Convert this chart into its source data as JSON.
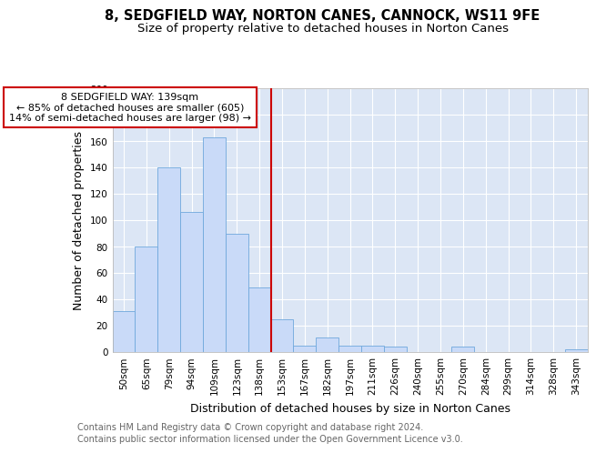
{
  "title": "8, SEDGFIELD WAY, NORTON CANES, CANNOCK, WS11 9FE",
  "subtitle": "Size of property relative to detached houses in Norton Canes",
  "xlabel": "Distribution of detached houses by size in Norton Canes",
  "ylabel": "Number of detached properties",
  "footnote1": "Contains HM Land Registry data © Crown copyright and database right 2024.",
  "footnote2": "Contains public sector information licensed under the Open Government Licence v3.0.",
  "categories": [
    "50sqm",
    "65sqm",
    "79sqm",
    "94sqm",
    "109sqm",
    "123sqm",
    "138sqm",
    "153sqm",
    "167sqm",
    "182sqm",
    "197sqm",
    "211sqm",
    "226sqm",
    "240sqm",
    "255sqm",
    "270sqm",
    "284sqm",
    "299sqm",
    "314sqm",
    "328sqm",
    "343sqm"
  ],
  "values": [
    31,
    80,
    140,
    106,
    163,
    90,
    49,
    25,
    5,
    11,
    5,
    5,
    4,
    0,
    0,
    4,
    0,
    0,
    0,
    0,
    2
  ],
  "bar_color": "#c9daf8",
  "bar_edge_color": "#6fa8dc",
  "vline_x_index": 6,
  "vline_color": "#cc0000",
  "annotation_text": "8 SEDGFIELD WAY: 139sqm\n← 85% of detached houses are smaller (605)\n14% of semi-detached houses are larger (98) →",
  "annotation_box_color": "#ffffff",
  "annotation_box_edge": "#cc0000",
  "ylim": [
    0,
    200
  ],
  "yticks": [
    0,
    20,
    40,
    60,
    80,
    100,
    120,
    140,
    160,
    180,
    200
  ],
  "background_color": "#ffffff",
  "plot_bg_color": "#dce6f5",
  "grid_color": "#ffffff",
  "title_fontsize": 10.5,
  "subtitle_fontsize": 9.5,
  "xlabel_fontsize": 9,
  "ylabel_fontsize": 9,
  "tick_fontsize": 7.5,
  "annotation_fontsize": 8,
  "footnote_fontsize": 7,
  "footnote_color": "#666666"
}
